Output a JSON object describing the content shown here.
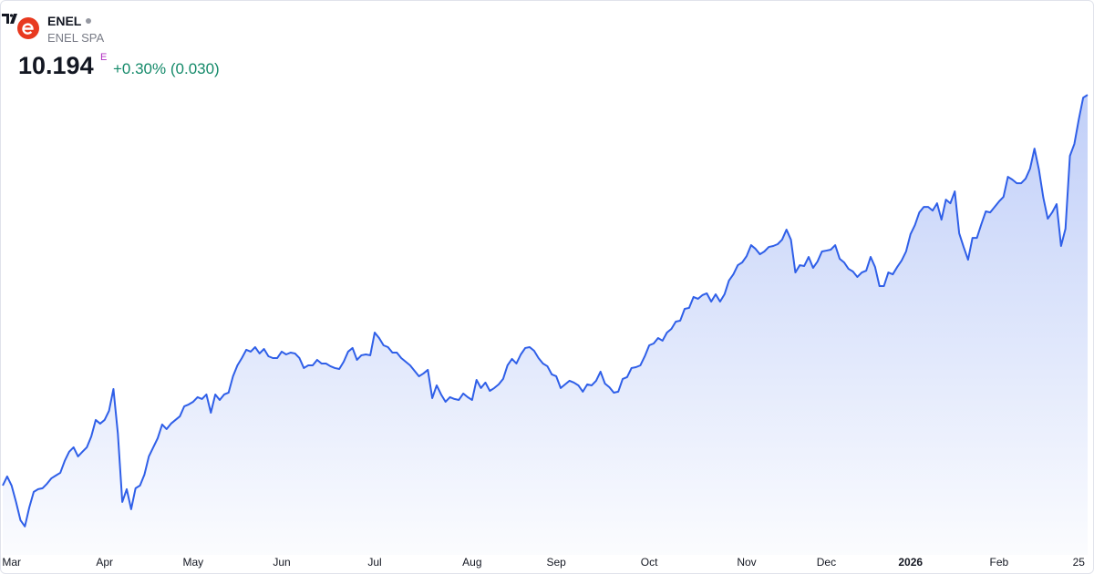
{
  "header": {
    "symbol": "ENEL",
    "name": "ENEL SPA",
    "price": "10.194",
    "currency_mark": "E",
    "change": "+0.30% (0.030)"
  },
  "chart_data": {
    "type": "area",
    "color": "#2f5fe8",
    "ylim": [
      6.45,
      10.6
    ],
    "categories": [
      null,
      null,
      "Mar",
      null,
      null,
      null,
      null,
      null,
      null,
      null,
      null,
      null,
      null,
      null,
      null,
      null,
      null,
      null,
      null,
      null,
      null,
      null,
      null,
      "Apr",
      null,
      null,
      null,
      null,
      null,
      null,
      null,
      null,
      null,
      null,
      null,
      null,
      null,
      null,
      null,
      null,
      null,
      null,
      null,
      "May",
      null,
      null,
      null,
      null,
      null,
      null,
      null,
      null,
      null,
      null,
      null,
      null,
      null,
      null,
      null,
      null,
      null,
      null,
      null,
      "Jun",
      null,
      null,
      null,
      null,
      null,
      null,
      null,
      null,
      null,
      null,
      null,
      null,
      null,
      null,
      null,
      null,
      null,
      null,
      null,
      null,
      "Jul",
      null,
      null,
      null,
      null,
      null,
      null,
      null,
      null,
      null,
      null,
      null,
      null,
      null,
      null,
      null,
      null,
      null,
      null,
      null,
      null,
      null,
      "Aug",
      null,
      null,
      null,
      null,
      null,
      null,
      null,
      null,
      null,
      null,
      null,
      null,
      null,
      null,
      null,
      null,
      null,
      null,
      "Sep",
      null,
      null,
      null,
      null,
      null,
      null,
      null,
      null,
      null,
      null,
      null,
      null,
      null,
      null,
      null,
      null,
      null,
      null,
      null,
      null,
      "Oct",
      null,
      null,
      null,
      null,
      null,
      null,
      null,
      null,
      null,
      null,
      null,
      null,
      null,
      null,
      null,
      null,
      null,
      null,
      null,
      null,
      null,
      "Nov",
      null,
      null,
      null,
      null,
      null,
      null,
      null,
      null,
      null,
      null,
      null,
      null,
      null,
      null,
      null,
      null,
      null,
      "Dec",
      null,
      null,
      null,
      null,
      null,
      null,
      null,
      null,
      null,
      null,
      null,
      null,
      null,
      null,
      null,
      null,
      null,
      null,
      "2026",
      null,
      null,
      null,
      null,
      null,
      null,
      null,
      null,
      null,
      null,
      null,
      null,
      null,
      null,
      null,
      null,
      null,
      null,
      null,
      "Feb",
      null,
      null,
      null,
      null,
      null,
      null,
      null,
      null,
      null,
      null,
      null,
      null,
      null,
      null,
      null,
      null,
      null,
      "25",
      null,
      null
    ],
    "values": [
      6.976,
      7.051,
      6.976,
      6.841,
      6.691,
      6.639,
      6.796,
      6.924,
      6.946,
      6.954,
      6.991,
      7.036,
      7.059,
      7.081,
      7.179,
      7.254,
      7.291,
      7.216,
      7.254,
      7.291,
      7.381,
      7.516,
      7.486,
      7.516,
      7.591,
      7.771,
      7.404,
      6.841,
      6.946,
      6.781,
      6.954,
      6.976,
      7.066,
      7.216,
      7.291,
      7.366,
      7.479,
      7.441,
      7.486,
      7.516,
      7.546,
      7.629,
      7.644,
      7.666,
      7.704,
      7.689,
      7.726,
      7.576,
      7.726,
      7.681,
      7.726,
      7.741,
      7.876,
      7.966,
      8.026,
      8.094,
      8.079,
      8.116,
      8.064,
      8.101,
      8.041,
      8.026,
      8.026,
      8.079,
      8.056,
      8.071,
      8.064,
      8.026,
      7.944,
      7.966,
      7.966,
      8.011,
      7.981,
      7.981,
      7.959,
      7.944,
      7.936,
      7.996,
      8.079,
      8.109,
      8.011,
      8.049,
      8.056,
      8.049,
      8.236,
      8.191,
      8.131,
      8.116,
      8.071,
      8.071,
      8.026,
      7.996,
      7.966,
      7.921,
      7.876,
      7.899,
      7.929,
      7.696,
      7.801,
      7.726,
      7.666,
      7.704,
      7.689,
      7.681,
      7.734,
      7.704,
      7.681,
      7.846,
      7.779,
      7.824,
      7.756,
      7.779,
      7.809,
      7.854,
      7.966,
      8.019,
      7.981,
      8.056,
      8.109,
      8.116,
      8.086,
      8.026,
      7.981,
      7.959,
      7.891,
      7.876,
      7.779,
      7.809,
      7.839,
      7.824,
      7.801,
      7.749,
      7.809,
      7.801,
      7.839,
      7.914,
      7.816,
      7.786,
      7.741,
      7.749,
      7.854,
      7.869,
      7.944,
      7.951,
      7.966,
      8.041,
      8.131,
      8.146,
      8.191,
      8.169,
      8.236,
      8.266,
      8.326,
      8.334,
      8.431,
      8.439,
      8.529,
      8.514,
      8.544,
      8.559,
      8.491,
      8.551,
      8.491,
      8.551,
      8.664,
      8.716,
      8.791,
      8.814,
      8.866,
      8.956,
      8.926,
      8.881,
      8.904,
      8.941,
      8.949,
      8.964,
      9.001,
      9.084,
      9.001,
      8.731,
      8.791,
      8.784,
      8.859,
      8.769,
      8.821,
      8.904,
      8.911,
      8.919,
      8.956,
      8.844,
      8.814,
      8.761,
      8.739,
      8.694,
      8.731,
      8.746,
      8.859,
      8.776,
      8.619,
      8.619,
      8.731,
      8.716,
      8.776,
      8.829,
      8.904,
      9.046,
      9.121,
      9.226,
      9.271,
      9.271,
      9.241,
      9.301,
      9.166,
      9.331,
      9.301,
      9.399,
      9.054,
      8.941,
      8.836,
      9.016,
      9.016,
      9.129,
      9.234,
      9.226,
      9.271,
      9.316,
      9.354,
      9.519,
      9.496,
      9.466,
      9.466,
      9.504,
      9.586,
      9.751,
      9.579,
      9.346,
      9.174,
      9.226,
      9.294,
      8.949,
      9.091,
      9.691,
      9.789,
      9.991,
      10.171,
      10.194
    ]
  }
}
